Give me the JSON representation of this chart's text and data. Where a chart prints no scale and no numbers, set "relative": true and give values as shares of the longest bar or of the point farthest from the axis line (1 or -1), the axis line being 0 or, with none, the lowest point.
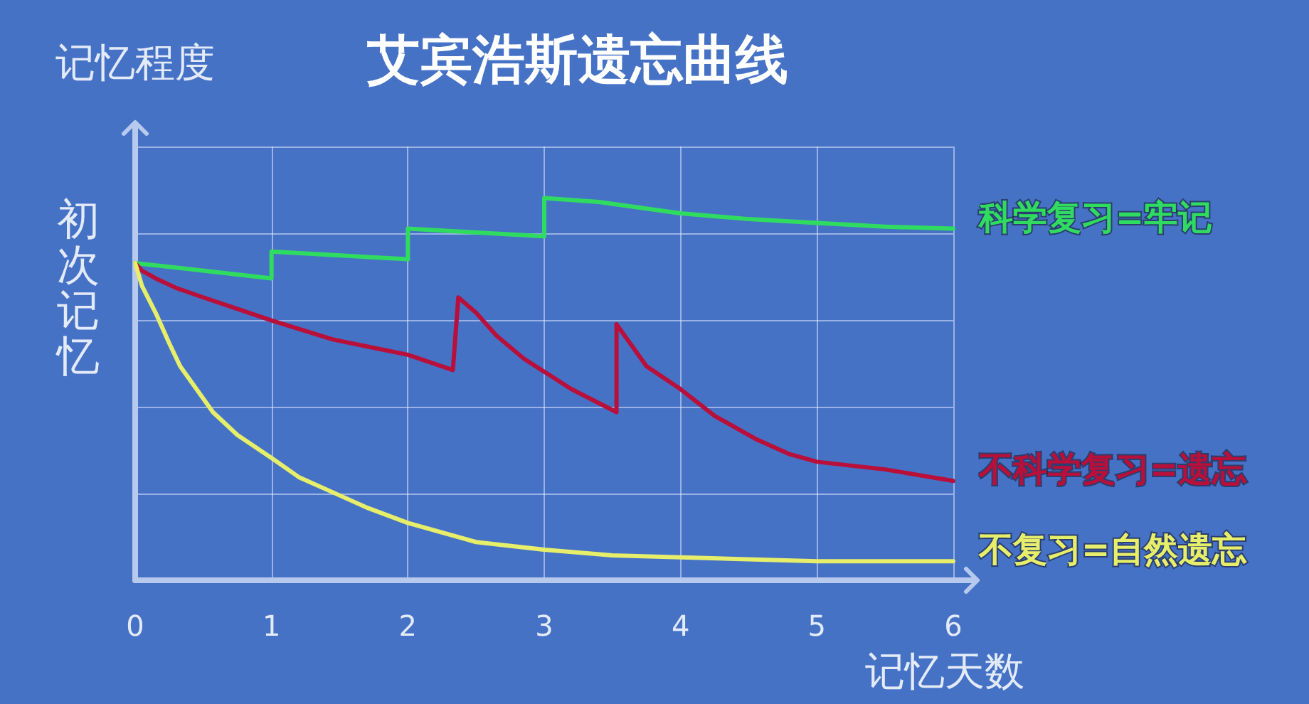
{
  "chart_data": {
    "type": "line",
    "title": "艾宾浩斯遗忘曲线",
    "xlabel": "记忆天数",
    "ylabel": "记忆程度",
    "annotations": [
      {
        "text": "初次记忆",
        "x": 0,
        "y": 0.83
      }
    ],
    "relative": true,
    "xlim": [
      0,
      6
    ],
    "xticks": [
      0,
      1,
      2,
      3,
      4,
      5,
      6
    ],
    "grid": true,
    "marker": "none",
    "series": [
      {
        "name": "科学复习=牢记",
        "color": "#30dc60",
        "x": [
          0,
          1,
          1,
          2,
          2,
          3,
          3,
          3.4,
          3.7,
          4,
          4.5,
          5,
          5.5,
          6
        ],
        "values": [
          0.83,
          0.79,
          0.86,
          0.84,
          0.92,
          0.9,
          1.0,
          0.99,
          0.975,
          0.96,
          0.945,
          0.935,
          0.925,
          0.92
        ]
      },
      {
        "name": "不科学复习=遗忘",
        "color": "#b8103a",
        "x": [
          0,
          0.05,
          0.15,
          0.3,
          0.5,
          0.75,
          1,
          1.45,
          2,
          2.33,
          2.37,
          2.5,
          2.65,
          2.85,
          3.2,
          3.53,
          3.53,
          3.75,
          4,
          4.25,
          4.55,
          4.8,
          5,
          5.5,
          6
        ],
        "values": [
          0.83,
          0.81,
          0.79,
          0.765,
          0.74,
          0.71,
          0.68,
          0.63,
          0.59,
          0.55,
          0.74,
          0.7,
          0.64,
          0.58,
          0.5,
          0.44,
          0.67,
          0.56,
          0.5,
          0.43,
          0.37,
          0.33,
          0.31,
          0.29,
          0.26
        ]
      },
      {
        "name": "不复习=自然遗忘",
        "color": "#e6ee6a",
        "x": [
          0,
          0.05,
          0.15,
          0.25,
          0.33,
          0.45,
          0.57,
          0.75,
          1,
          1.2,
          1.45,
          1.7,
          2,
          2.5,
          3,
          3.5,
          4,
          5,
          6
        ],
        "values": [
          0.83,
          0.77,
          0.7,
          0.62,
          0.56,
          0.5,
          0.44,
          0.38,
          0.32,
          0.27,
          0.23,
          0.19,
          0.15,
          0.1,
          0.08,
          0.065,
          0.06,
          0.05,
          0.05
        ]
      }
    ]
  }
}
